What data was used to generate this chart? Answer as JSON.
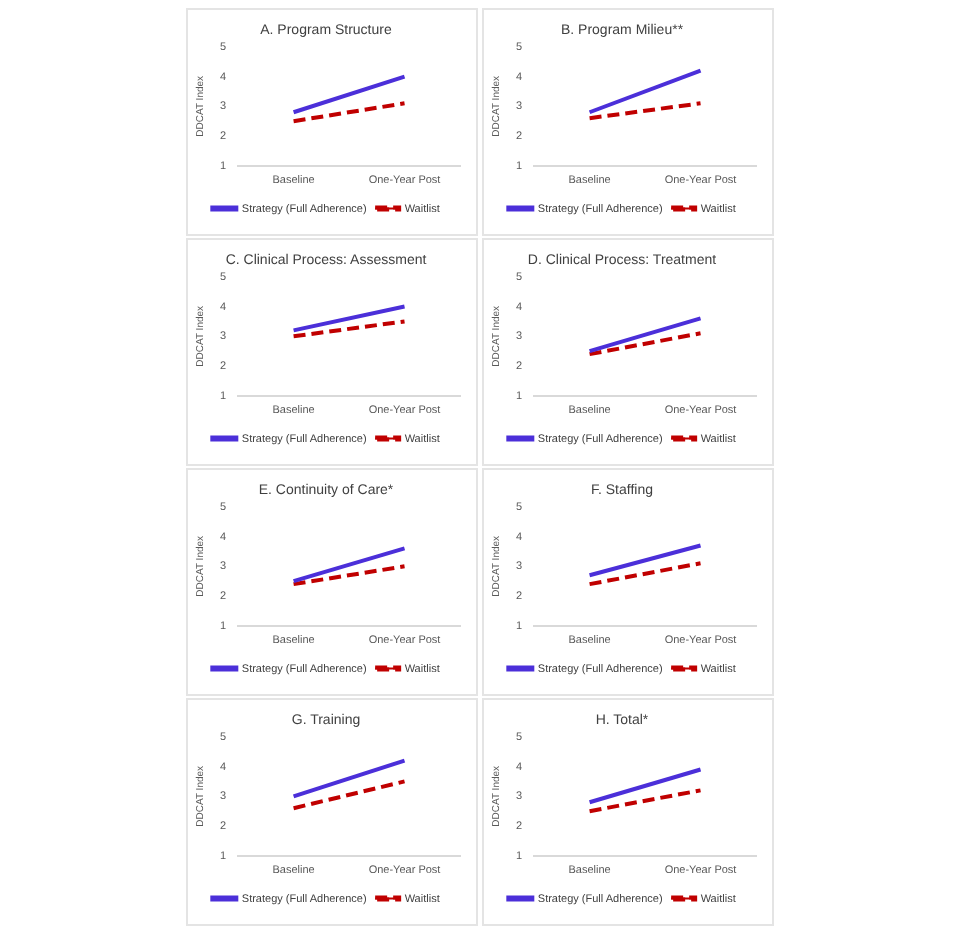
{
  "chart_data": [
    {
      "type": "line",
      "title": "A. Program Structure",
      "ylabel": "DDCAT Index",
      "categories": [
        "Baseline",
        "One-Year Post"
      ],
      "ylim": [
        1,
        5
      ],
      "yticks": [
        1,
        2,
        3,
        4,
        5
      ],
      "legend": "bottom",
      "marker": "none",
      "series": [
        {
          "name": "Strategy (Full Adherence)",
          "color": "#4b2fd9",
          "line_style": "solid",
          "values": [
            2.8,
            4.0
          ]
        },
        {
          "name": "Waitlist",
          "color": "#c00000",
          "line_style": "dashed",
          "values": [
            2.5,
            3.1
          ]
        }
      ]
    },
    {
      "type": "line",
      "title": "B. Program Milieu**",
      "ylabel": "DDCAT Index",
      "categories": [
        "Baseline",
        "One-Year Post"
      ],
      "ylim": [
        1,
        5
      ],
      "yticks": [
        1,
        2,
        3,
        4,
        5
      ],
      "legend": "bottom",
      "marker": "none",
      "series": [
        {
          "name": "Strategy (Full Adherence)",
          "color": "#4b2fd9",
          "line_style": "solid",
          "values": [
            2.8,
            4.2
          ]
        },
        {
          "name": "Waitlist",
          "color": "#c00000",
          "line_style": "dashed",
          "values": [
            2.6,
            3.1
          ]
        }
      ]
    },
    {
      "type": "line",
      "title": "C. Clinical Process: Assessment",
      "ylabel": "DDCAT Index",
      "categories": [
        "Baseline",
        "One-Year Post"
      ],
      "ylim": [
        1,
        5
      ],
      "yticks": [
        1,
        2,
        3,
        4,
        5
      ],
      "legend": "bottom",
      "marker": "none",
      "series": [
        {
          "name": "Strategy (Full Adherence)",
          "color": "#4b2fd9",
          "line_style": "solid",
          "values": [
            3.2,
            4.0
          ]
        },
        {
          "name": "Waitlist",
          "color": "#c00000",
          "line_style": "dashed",
          "values": [
            3.0,
            3.5
          ]
        }
      ]
    },
    {
      "type": "line",
      "title": "D. Clinical Process: Treatment",
      "ylabel": "DDCAT Index",
      "categories": [
        "Baseline",
        "One-Year Post"
      ],
      "ylim": [
        1,
        5
      ],
      "yticks": [
        1,
        2,
        3,
        4,
        5
      ],
      "legend": "bottom",
      "marker": "none",
      "series": [
        {
          "name": "Strategy (Full Adherence)",
          "color": "#4b2fd9",
          "line_style": "solid",
          "values": [
            2.5,
            3.6
          ]
        },
        {
          "name": "Waitlist",
          "color": "#c00000",
          "line_style": "dashed",
          "values": [
            2.4,
            3.1
          ]
        }
      ]
    },
    {
      "type": "line",
      "title": "E. Continuity of Care*",
      "ylabel": "DDCAT Index",
      "categories": [
        "Baseline",
        "One-Year Post"
      ],
      "ylim": [
        1,
        5
      ],
      "yticks": [
        1,
        2,
        3,
        4,
        5
      ],
      "legend": "bottom",
      "marker": "none",
      "series": [
        {
          "name": "Strategy (Full Adherence)",
          "color": "#4b2fd9",
          "line_style": "solid",
          "values": [
            2.5,
            3.6
          ]
        },
        {
          "name": "Waitlist",
          "color": "#c00000",
          "line_style": "dashed",
          "values": [
            2.4,
            3.0
          ]
        }
      ]
    },
    {
      "type": "line",
      "title": "F. Staffing",
      "ylabel": "DDCAT Index",
      "categories": [
        "Baseline",
        "One-Year Post"
      ],
      "ylim": [
        1,
        5
      ],
      "yticks": [
        1,
        2,
        3,
        4,
        5
      ],
      "legend": "bottom",
      "marker": "none",
      "series": [
        {
          "name": "Strategy (Full Adherence)",
          "color": "#4b2fd9",
          "line_style": "solid",
          "values": [
            2.7,
            3.7
          ]
        },
        {
          "name": "Waitlist",
          "color": "#c00000",
          "line_style": "dashed",
          "values": [
            2.4,
            3.1
          ]
        }
      ]
    },
    {
      "type": "line",
      "title": "G. Training",
      "ylabel": "DDCAT Index",
      "categories": [
        "Baseline",
        "One-Year Post"
      ],
      "ylim": [
        1,
        5
      ],
      "yticks": [
        1,
        2,
        3,
        4,
        5
      ],
      "legend": "bottom",
      "marker": "none",
      "series": [
        {
          "name": "Strategy (Full Adherence)",
          "color": "#4b2fd9",
          "line_style": "solid",
          "values": [
            3.0,
            4.2
          ]
        },
        {
          "name": "Waitlist",
          "color": "#c00000",
          "line_style": "dashed",
          "values": [
            2.6,
            3.5
          ]
        }
      ]
    },
    {
      "type": "line",
      "title": "H. Total*",
      "ylabel": "DDCAT Index",
      "categories": [
        "Baseline",
        "One-Year Post"
      ],
      "ylim": [
        1,
        5
      ],
      "yticks": [
        1,
        2,
        3,
        4,
        5
      ],
      "legend": "bottom",
      "marker": "none",
      "series": [
        {
          "name": "Strategy (Full Adherence)",
          "color": "#4b2fd9",
          "line_style": "solid",
          "values": [
            2.8,
            3.9
          ]
        },
        {
          "name": "Waitlist",
          "color": "#c00000",
          "line_style": "dashed",
          "values": [
            2.5,
            3.2
          ]
        }
      ]
    }
  ]
}
